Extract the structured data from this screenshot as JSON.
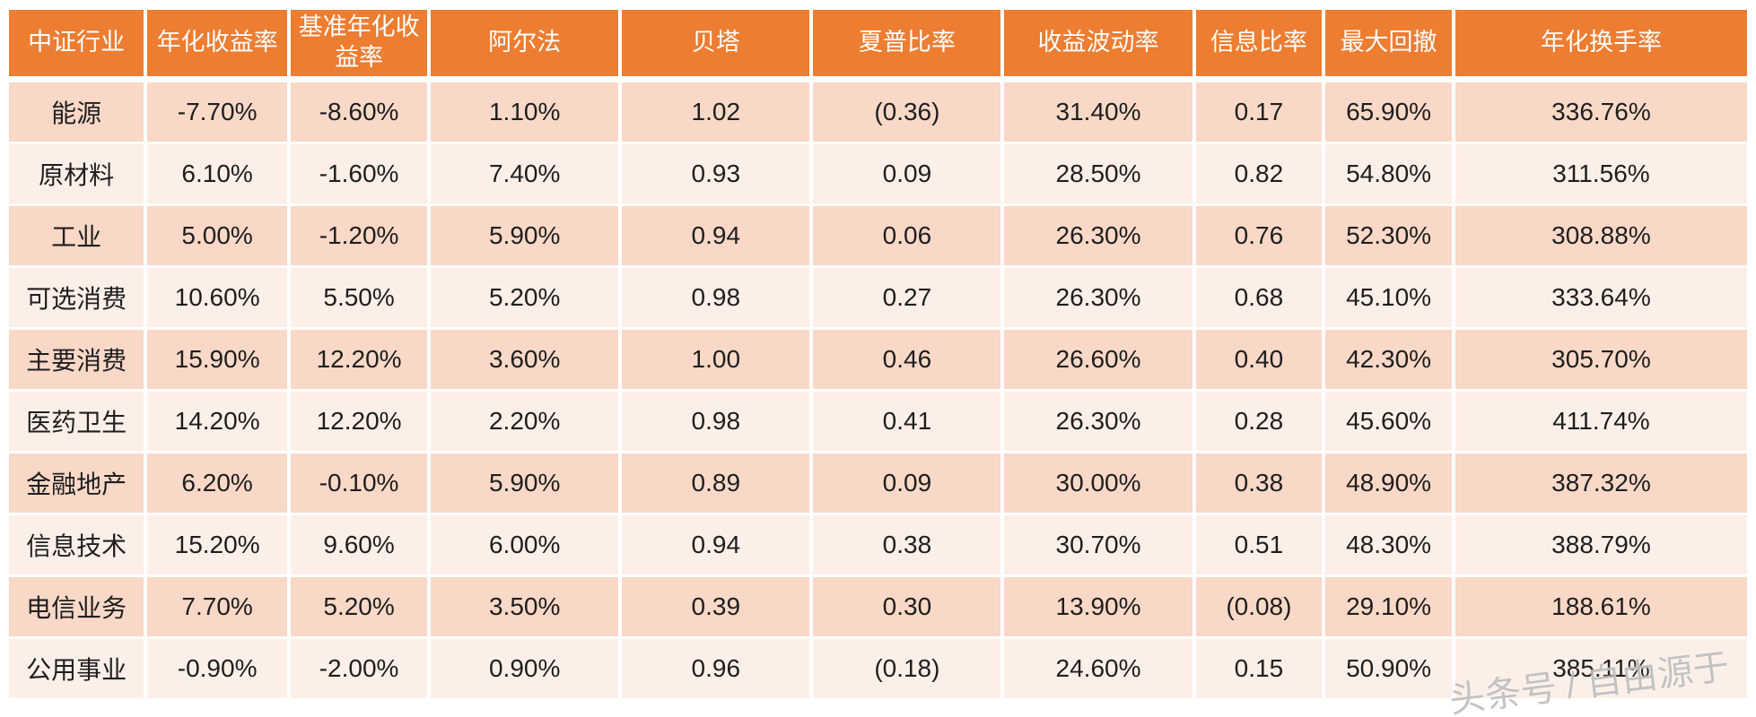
{
  "chart_data": {
    "type": "table",
    "title": "",
    "columns": [
      "中证行业",
      "年化收益率",
      "基准年化收益率",
      "阿尔法",
      "贝塔",
      "夏普比率",
      "收益波动率",
      "信息比率",
      "最大回撤",
      "年化换手率"
    ],
    "rows": [
      {
        "industry": "能源",
        "values": [
          "-7.70%",
          "-8.60%",
          "1.10%",
          "1.02",
          "(0.36)",
          "31.40%",
          "0.17",
          "65.90%",
          "336.76%"
        ]
      },
      {
        "industry": "原材料",
        "values": [
          "6.10%",
          "-1.60%",
          "7.40%",
          "0.93",
          "0.09",
          "28.50%",
          "0.82",
          "54.80%",
          "311.56%"
        ]
      },
      {
        "industry": "工业",
        "values": [
          "5.00%",
          "-1.20%",
          "5.90%",
          "0.94",
          "0.06",
          "26.30%",
          "0.76",
          "52.30%",
          "308.88%"
        ]
      },
      {
        "industry": "可选消费",
        "values": [
          "10.60%",
          "5.50%",
          "5.20%",
          "0.98",
          "0.27",
          "26.30%",
          "0.68",
          "45.10%",
          "333.64%"
        ]
      },
      {
        "industry": "主要消费",
        "values": [
          "15.90%",
          "12.20%",
          "3.60%",
          "1.00",
          "0.46",
          "26.60%",
          "0.40",
          "42.30%",
          "305.70%"
        ]
      },
      {
        "industry": "医药卫生",
        "values": [
          "14.20%",
          "12.20%",
          "2.20%",
          "0.98",
          "0.41",
          "26.30%",
          "0.28",
          "45.60%",
          "411.74%"
        ]
      },
      {
        "industry": "金融地产",
        "values": [
          "6.20%",
          "-0.10%",
          "5.90%",
          "0.89",
          "0.09",
          "30.00%",
          "0.38",
          "48.90%",
          "387.32%"
        ]
      },
      {
        "industry": "信息技术",
        "values": [
          "15.20%",
          "9.60%",
          "6.00%",
          "0.94",
          "0.38",
          "30.70%",
          "0.51",
          "48.30%",
          "388.79%"
        ]
      },
      {
        "industry": "电信业务",
        "values": [
          "7.70%",
          "5.20%",
          "3.50%",
          "0.39",
          "0.30",
          "13.90%",
          "(0.08)",
          "29.10%",
          "188.61%"
        ]
      },
      {
        "industry": "公用事业",
        "values": [
          "-0.90%",
          "-2.00%",
          "0.90%",
          "0.96",
          "(0.18)",
          "24.60%",
          "0.15",
          "50.90%",
          "385.11%"
        ]
      }
    ],
    "colors": {
      "header_bg": "#ED7D31",
      "header_text": "#FFFFFF",
      "row_odd_bg": "#F9D8C7",
      "row_even_bg": "#FCEFE8",
      "cell_text": "#1E1E1E"
    },
    "layout": {
      "grid": "white gaps between cells",
      "alignment": "center"
    }
  },
  "watermark": {
    "text": "头条号 / 自由源于"
  }
}
